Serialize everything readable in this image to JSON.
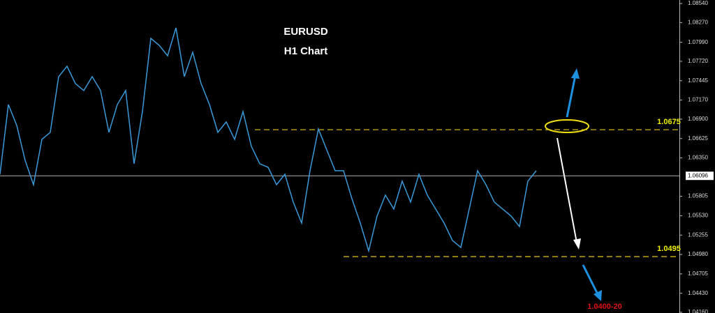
{
  "chart_data": {
    "type": "line",
    "title": "EURUSD",
    "subtitle": "H1 Chart",
    "series": [
      {
        "name": "EURUSD",
        "color": "#3a9ad9",
        "values": [
          1.06118,
          1.07107,
          1.0681,
          1.06316,
          1.0597,
          1.06613,
          1.06712,
          1.07503,
          1.07651,
          1.07404,
          1.07305,
          1.07503,
          1.07305,
          1.06712,
          1.07107,
          1.07305,
          1.06267,
          1.07008,
          1.08046,
          1.07947,
          1.07799,
          1.08195,
          1.07503,
          1.07849,
          1.07404,
          1.07107,
          1.06712,
          1.0686,
          1.06613,
          1.07008,
          1.06514,
          1.06267,
          1.06217,
          1.0597,
          1.06118,
          1.05723,
          1.05426,
          1.06168,
          1.06761,
          1.06464,
          1.06168,
          1.06168,
          1.05772,
          1.05426,
          1.05031,
          1.05525,
          1.05822,
          1.05624,
          1.0602,
          1.05723,
          1.06118,
          1.05822,
          1.05624,
          1.05426,
          1.05179,
          1.0508,
          1.05624,
          1.06168,
          1.0597,
          1.05723,
          1.05624,
          1.05525,
          1.05377,
          1.0602,
          1.06168
        ]
      }
    ],
    "ylim": [
      1.0415,
      1.0859
    ],
    "yticks": [
      {
        "value": 1.0854,
        "label": "1.08540"
      },
      {
        "value": 1.0827,
        "label": "1.08270"
      },
      {
        "value": 1.0799,
        "label": "1.07990"
      },
      {
        "value": 1.0772,
        "label": "1.07720"
      },
      1.07445,
      {
        "value": 1.0717,
        "label": "1.07170"
      },
      {
        "value": 1.069,
        "label": "1.06900"
      },
      1.06625,
      {
        "value": 1.0635,
        "label": "1.06350"
      },
      1.05805,
      {
        "value": 1.0553,
        "label": "1.05530"
      },
      1.05255,
      {
        "value": 1.0498,
        "label": "1.04980"
      },
      1.04705,
      {
        "value": 1.0443,
        "label": "1.04430"
      },
      {
        "value": 1.0416,
        "label": "1.04160"
      }
    ],
    "last_price": 1.06096,
    "levels": [
      {
        "value": 1.0675,
        "color": "#e6c619"
      },
      {
        "value": 1.0495,
        "color": "#e6c619"
      }
    ],
    "annotations": [
      "1.0400-20"
    ]
  }
}
